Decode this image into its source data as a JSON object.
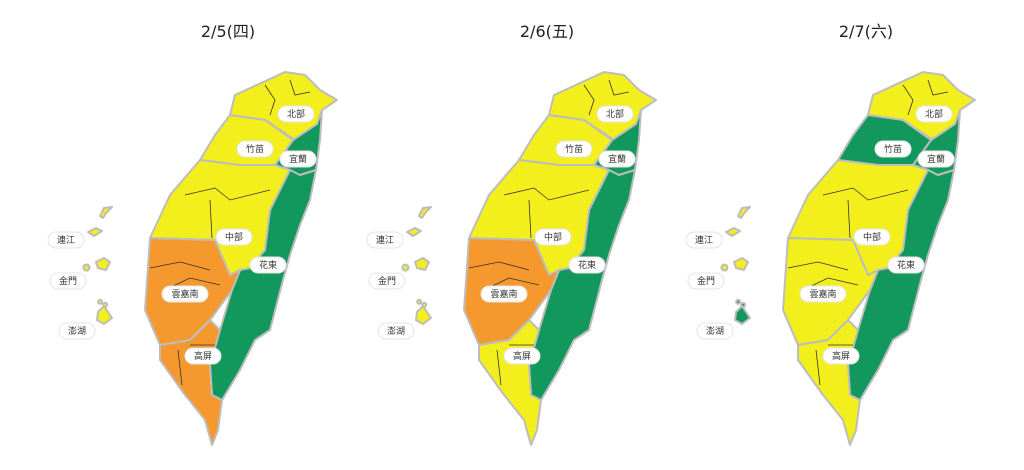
{
  "colors": {
    "good": "#12985c",
    "moderate": "#f3ef1c",
    "sensitive": "#f5992f",
    "border": "#bdbdbd",
    "inner_line": "#333333"
  },
  "region_labels": {
    "north": "北部",
    "zhumiao": "竹苗",
    "yilan": "宜蘭",
    "central": "中部",
    "huadong": "花東",
    "yunjianan": "雲嘉南",
    "gaoping": "高屏",
    "matsu": "連江",
    "kinmen": "金門",
    "penghu": "澎湖"
  },
  "maps": [
    {
      "date": "2/5(四)",
      "levels": {
        "north": "moderate",
        "zhumiao": "moderate",
        "yilan": "good",
        "central": "moderate",
        "huadong": "good",
        "yunjianan": "sensitive",
        "gaoping": "sensitive",
        "matsu": "moderate",
        "kinmen": "moderate",
        "penghu": "moderate"
      }
    },
    {
      "date": "2/6(五)",
      "levels": {
        "north": "moderate",
        "zhumiao": "moderate",
        "yilan": "good",
        "central": "moderate",
        "huadong": "good",
        "yunjianan": "sensitive",
        "gaoping": "moderate",
        "matsu": "moderate",
        "kinmen": "moderate",
        "penghu": "moderate"
      }
    },
    {
      "date": "2/7(六)",
      "levels": {
        "north": "moderate",
        "zhumiao": "good",
        "yilan": "good",
        "central": "moderate",
        "huadong": "good",
        "yunjianan": "moderate",
        "gaoping": "moderate",
        "matsu": "moderate",
        "kinmen": "moderate",
        "penghu": "good"
      }
    }
  ]
}
